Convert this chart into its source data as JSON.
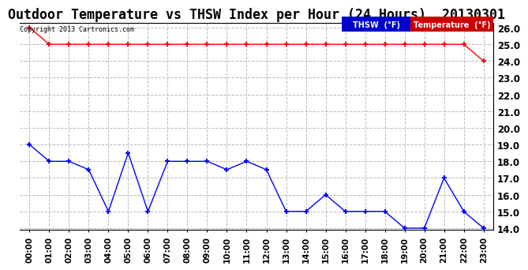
{
  "title": "Outdoor Temperature vs THSW Index per Hour (24 Hours)  20130301",
  "copyright": "Copyright 2013 Cartronics.com",
  "hours": [
    "00:00",
    "01:00",
    "02:00",
    "03:00",
    "04:00",
    "05:00",
    "06:00",
    "07:00",
    "08:00",
    "09:00",
    "10:00",
    "11:00",
    "12:00",
    "13:00",
    "14:00",
    "15:00",
    "16:00",
    "17:00",
    "18:00",
    "19:00",
    "20:00",
    "21:00",
    "22:00",
    "23:00"
  ],
  "temperature": [
    19.0,
    18.0,
    18.0,
    17.5,
    15.0,
    18.5,
    15.0,
    18.0,
    18.0,
    18.0,
    17.5,
    18.0,
    17.5,
    15.0,
    15.0,
    16.0,
    15.0,
    15.0,
    15.0,
    14.0,
    14.0,
    17.0,
    15.0,
    14.0
  ],
  "thsw": [
    26.0,
    25.0,
    25.0,
    25.0,
    25.0,
    25.0,
    25.0,
    25.0,
    25.0,
    25.0,
    25.0,
    25.0,
    25.0,
    25.0,
    25.0,
    25.0,
    25.0,
    25.0,
    25.0,
    25.0,
    25.0,
    25.0,
    25.0,
    24.0
  ],
  "ylim_min": 14.0,
  "ylim_max": 26.0,
  "ytick_step": 1.0,
  "temp_color": "#0000ff",
  "thsw_color": "#ff0000",
  "background_color": "#ffffff",
  "grid_color": "#bbbbbb",
  "legend_thsw_bg": "#0000cc",
  "legend_temp_bg": "#cc0000",
  "title_fontsize": 12,
  "marker": "+",
  "markersize": 5,
  "markeredgewidth": 1.5
}
